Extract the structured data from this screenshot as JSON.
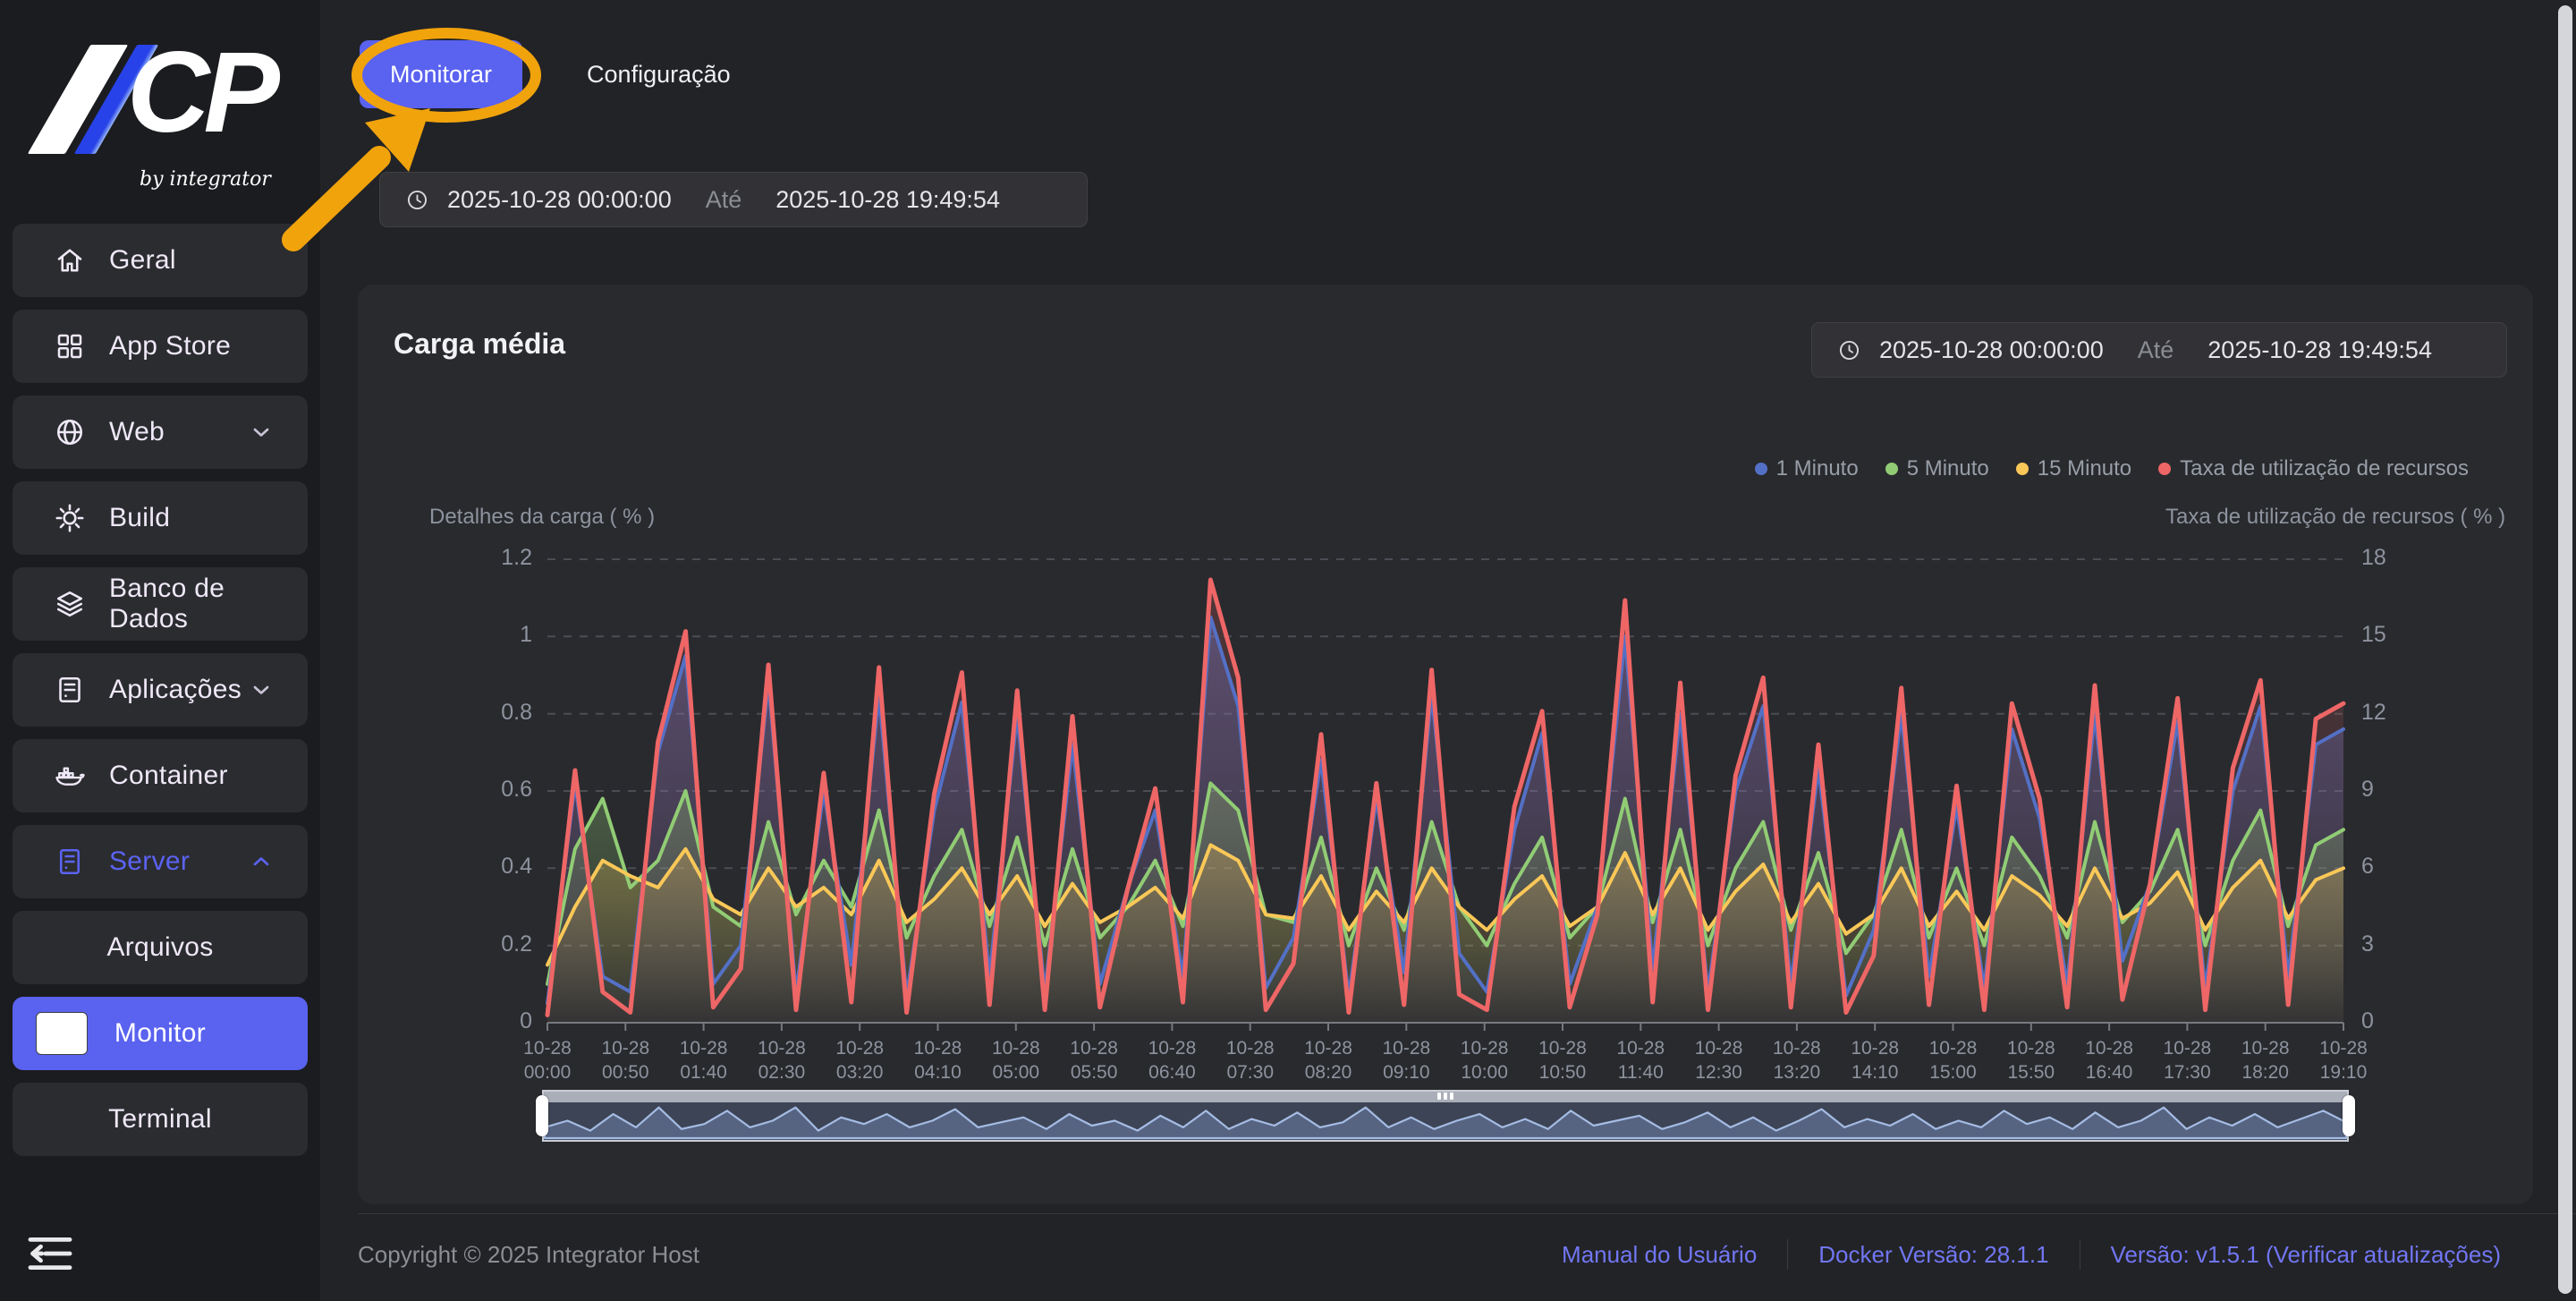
{
  "colors": {
    "accent": "#5a62f0",
    "annotation": "#f1a30c",
    "series_blue": "#5470c6",
    "series_green": "#91cc75",
    "series_yellow": "#fac858",
    "series_red": "#ee6666"
  },
  "sidebar": {
    "logo": {
      "text": "CP",
      "tagline": "by integrator"
    },
    "items": [
      {
        "label": "Geral",
        "icon": "home",
        "chevron": null,
        "child": false,
        "accent": false,
        "active": false
      },
      {
        "label": "App Store",
        "icon": "grid",
        "chevron": null,
        "child": false,
        "accent": false,
        "active": false
      },
      {
        "label": "Web",
        "icon": "globe",
        "chevron": "down",
        "child": false,
        "accent": false,
        "active": false
      },
      {
        "label": "Build",
        "icon": "gear",
        "chevron": null,
        "child": false,
        "accent": false,
        "active": false
      },
      {
        "label": "Banco de Dados",
        "icon": "layers",
        "chevron": null,
        "child": false,
        "accent": false,
        "active": false
      },
      {
        "label": "Aplicações",
        "icon": "apps",
        "chevron": "down",
        "child": false,
        "accent": false,
        "active": false
      },
      {
        "label": "Container",
        "icon": "docker",
        "chevron": null,
        "child": false,
        "accent": false,
        "active": false
      },
      {
        "label": "Server",
        "icon": "server",
        "chevron": "up",
        "child": false,
        "accent": true,
        "active": false
      },
      {
        "label": "Arquivos",
        "icon": null,
        "chevron": null,
        "child": true,
        "accent": false,
        "active": false
      },
      {
        "label": "Monitor",
        "icon": null,
        "chevron": null,
        "child": true,
        "accent": false,
        "active": true
      },
      {
        "label": "Terminal",
        "icon": null,
        "chevron": null,
        "child": true,
        "accent": false,
        "active": false
      }
    ]
  },
  "header": {
    "tabs": [
      {
        "label": "Monitorar",
        "active": true
      },
      {
        "label": "Configuração",
        "active": false
      }
    ]
  },
  "daterange": {
    "start": "2025-10-28 00:00:00",
    "until": "Até",
    "end": "2025-10-28 19:49:54"
  },
  "panel": {
    "title": "Carga média"
  },
  "chart_data": {
    "type": "line",
    "title": "Carga média",
    "legend_position": "top-right",
    "grid": "dashed-horizontal",
    "x_date": "10-28",
    "x_times": [
      "00:00",
      "00:50",
      "01:40",
      "02:30",
      "03:20",
      "04:10",
      "05:00",
      "05:50",
      "06:40",
      "07:30",
      "08:20",
      "09:10",
      "10:00",
      "10:50",
      "11:40",
      "12:30",
      "13:20",
      "14:10",
      "15:00",
      "15:50",
      "16:40",
      "17:30",
      "18:20",
      "19:10"
    ],
    "y_left": {
      "label": "Detalhes da carga ( % )",
      "max": 1.2,
      "tick_values": [
        1.2,
        1,
        0.8,
        0.6,
        0.4,
        0.2,
        0
      ],
      "tick_labels": [
        "1.2",
        "1",
        "0.8",
        "0.6",
        "0.4",
        "0.2",
        "0"
      ]
    },
    "y_right": {
      "label": "Taxa de utilização de recursos ( % )",
      "max": 18,
      "tick_values": [
        18,
        15,
        12,
        9,
        6,
        3,
        0
      ],
      "tick_labels": [
        "18",
        "15",
        "12",
        "9",
        "6",
        "3",
        "0"
      ]
    },
    "series": [
      {
        "name": "1 Minuto",
        "color": "#5470c6",
        "axis": "left",
        "values": [
          0.05,
          0.62,
          0.12,
          0.08,
          0.7,
          0.95,
          0.1,
          0.2,
          0.88,
          0.08,
          0.6,
          0.15,
          0.85,
          0.07,
          0.55,
          0.83,
          0.12,
          0.8,
          0.08,
          0.72,
          0.1,
          0.35,
          0.55,
          0.12,
          1.05,
          0.82,
          0.09,
          0.22,
          0.68,
          0.07,
          0.58,
          0.13,
          0.85,
          0.18,
          0.08,
          0.5,
          0.75,
          0.1,
          0.3,
          1.0,
          0.14,
          0.8,
          0.08,
          0.6,
          0.82,
          0.1,
          0.66,
          0.07,
          0.24,
          0.8,
          0.12,
          0.56,
          0.09,
          0.76,
          0.53,
          0.1,
          0.8,
          0.16,
          0.36,
          0.78,
          0.09,
          0.6,
          0.82,
          0.12,
          0.72,
          0.76
        ]
      },
      {
        "name": "5 Minuto",
        "color": "#91cc75",
        "axis": "left",
        "values": [
          0.1,
          0.45,
          0.58,
          0.35,
          0.42,
          0.6,
          0.3,
          0.25,
          0.52,
          0.28,
          0.42,
          0.3,
          0.55,
          0.22,
          0.38,
          0.5,
          0.25,
          0.48,
          0.2,
          0.45,
          0.22,
          0.3,
          0.42,
          0.25,
          0.62,
          0.55,
          0.28,
          0.26,
          0.48,
          0.2,
          0.4,
          0.24,
          0.52,
          0.3,
          0.2,
          0.36,
          0.48,
          0.22,
          0.3,
          0.58,
          0.26,
          0.5,
          0.2,
          0.4,
          0.52,
          0.24,
          0.44,
          0.18,
          0.28,
          0.5,
          0.22,
          0.4,
          0.2,
          0.48,
          0.38,
          0.22,
          0.52,
          0.26,
          0.34,
          0.5,
          0.2,
          0.42,
          0.55,
          0.25,
          0.46,
          0.5
        ]
      },
      {
        "name": "15 Minuto",
        "color": "#fac858",
        "axis": "left",
        "values": [
          0.15,
          0.3,
          0.42,
          0.38,
          0.35,
          0.45,
          0.32,
          0.28,
          0.4,
          0.3,
          0.35,
          0.28,
          0.42,
          0.26,
          0.32,
          0.4,
          0.28,
          0.38,
          0.25,
          0.36,
          0.26,
          0.3,
          0.35,
          0.27,
          0.46,
          0.42,
          0.28,
          0.27,
          0.38,
          0.24,
          0.34,
          0.26,
          0.4,
          0.3,
          0.24,
          0.32,
          0.38,
          0.25,
          0.3,
          0.44,
          0.28,
          0.4,
          0.24,
          0.34,
          0.41,
          0.26,
          0.36,
          0.23,
          0.28,
          0.4,
          0.25,
          0.34,
          0.24,
          0.38,
          0.33,
          0.25,
          0.4,
          0.27,
          0.31,
          0.39,
          0.24,
          0.35,
          0.42,
          0.27,
          0.37,
          0.4
        ]
      },
      {
        "name": "Taxa de utilização de recursos",
        "color": "#ee6666",
        "axis": "right",
        "values": [
          0.3,
          9.8,
          1.2,
          0.4,
          10.9,
          15.2,
          0.6,
          2.1,
          13.9,
          0.5,
          9.7,
          0.8,
          13.8,
          0.4,
          8.9,
          13.6,
          0.7,
          12.9,
          0.5,
          11.9,
          0.6,
          5.2,
          9.1,
          0.8,
          17.2,
          13.4,
          0.5,
          2.3,
          11.2,
          0.4,
          9.3,
          0.7,
          13.7,
          1.1,
          0.5,
          8.4,
          12.1,
          0.6,
          4.2,
          16.4,
          0.8,
          13.2,
          0.5,
          9.6,
          13.4,
          0.6,
          10.8,
          0.4,
          2.6,
          13.0,
          0.7,
          9.2,
          0.5,
          12.4,
          8.7,
          0.6,
          13.1,
          0.9,
          5.4,
          12.6,
          0.5,
          9.9,
          13.3,
          0.7,
          11.8,
          12.4
        ]
      }
    ],
    "brush_values": [
      0.3,
      0.5,
      0.2,
      0.7,
      0.3,
      0.9,
      0.25,
      0.4,
      0.8,
      0.3,
      0.5,
      0.9,
      0.2,
      0.6,
      0.4,
      0.7,
      0.3,
      0.5,
      0.85,
      0.3,
      0.45,
      0.6,
      0.25,
      0.7,
      0.35,
      0.5,
      0.2,
      0.65,
      0.3,
      0.8,
      0.25,
      0.55,
      0.35,
      0.75,
      0.3,
      0.45,
      0.9,
      0.3,
      0.6,
      0.25,
      0.5,
      0.7,
      0.3,
      0.55,
      0.25,
      0.8,
      0.35,
      0.5,
      0.65,
      0.25,
      0.45,
      0.75,
      0.3,
      0.6,
      0.2,
      0.5,
      0.85,
      0.3,
      0.55,
      0.35,
      0.7,
      0.25,
      0.5,
      0.3,
      0.8,
      0.4,
      0.6,
      0.25,
      0.75,
      0.3,
      0.5,
      0.9,
      0.25,
      0.6,
      0.35,
      0.7,
      0.3,
      0.55,
      0.8,
      0.45
    ]
  },
  "footer": {
    "copyright": "Copyright © 2025 Integrator Host",
    "links": [
      "Manual do Usuário",
      "Docker Versão: 28.1.1",
      "Versão: v1.5.1 (Verificar atualizações)"
    ]
  }
}
